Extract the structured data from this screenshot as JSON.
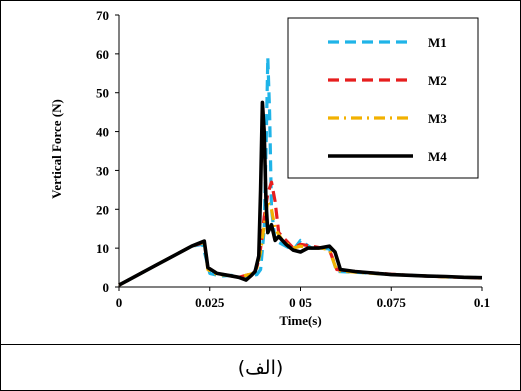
{
  "caption": "(الف)",
  "chart_data": {
    "type": "line",
    "xlabel": "Time(s)",
    "ylabel": "Vertical Force (N)",
    "xlim": [
      0,
      0.1
    ],
    "ylim": [
      0,
      70
    ],
    "xticks": [
      0,
      0.025,
      0.05,
      0.075,
      0.1
    ],
    "xtick_labels": [
      "0",
      "0.025",
      "0 05",
      "0.075",
      "0.1"
    ],
    "yticks": [
      0,
      10,
      20,
      30,
      40,
      50,
      60,
      70
    ],
    "ytick_labels": [
      "0",
      "10",
      "20",
      "30",
      "40",
      "50",
      "60",
      "70"
    ],
    "grid": false,
    "legend_position": "top-right",
    "series": [
      {
        "name": "M1",
        "color": "#1fb4e8",
        "dash": "dashed",
        "x": [
          0,
          0.005,
          0.01,
          0.015,
          0.02,
          0.023,
          0.025,
          0.028,
          0.031,
          0.034,
          0.036,
          0.038,
          0.039,
          0.04,
          0.0405,
          0.041,
          0.0415,
          0.042,
          0.043,
          0.045,
          0.048,
          0.05,
          0.053,
          0.056,
          0.058,
          0.06,
          0.065,
          0.07,
          0.075,
          0.08,
          0.085,
          0.09,
          0.095,
          0.1
        ],
        "y": [
          0.5,
          3,
          5.5,
          8,
          10.5,
          11,
          3.5,
          2.8,
          3,
          2.2,
          3,
          3.2,
          4.5,
          15,
          35,
          59,
          45,
          20,
          12,
          11,
          9.5,
          12,
          10,
          10,
          9.8,
          4,
          3.8,
          3.5,
          3.2,
          3,
          2.8,
          2.6,
          2.5,
          2.4
        ]
      },
      {
        "name": "M2",
        "color": "#e61e1e",
        "dash": "dashed",
        "x": [
          0,
          0.005,
          0.01,
          0.015,
          0.02,
          0.0235,
          0.0245,
          0.027,
          0.03,
          0.033,
          0.035,
          0.037,
          0.038,
          0.039,
          0.04,
          0.041,
          0.042,
          0.043,
          0.044,
          0.046,
          0.048,
          0.05,
          0.053,
          0.056,
          0.058,
          0.06,
          0.065,
          0.07,
          0.075,
          0.08,
          0.085,
          0.09,
          0.095,
          0.1
        ],
        "y": [
          0.5,
          3,
          5.5,
          8,
          10.5,
          11.5,
          5,
          3.5,
          3,
          2.5,
          3,
          3.5,
          5,
          10,
          18,
          24,
          27,
          22,
          14,
          12,
          10,
          11,
          10.5,
          10,
          9.5,
          4.5,
          4,
          3.6,
          3.3,
          3,
          2.8,
          2.6,
          2.5,
          2.3
        ]
      },
      {
        "name": "M3",
        "color": "#f2b100",
        "dash": "dashdot",
        "x": [
          0,
          0.005,
          0.01,
          0.015,
          0.02,
          0.0235,
          0.0245,
          0.027,
          0.03,
          0.033,
          0.035,
          0.037,
          0.038,
          0.039,
          0.04,
          0.041,
          0.042,
          0.043,
          0.045,
          0.048,
          0.05,
          0.053,
          0.056,
          0.058,
          0.06,
          0.065,
          0.07,
          0.075,
          0.08,
          0.085,
          0.09,
          0.095,
          0.1
        ],
        "y": [
          0.5,
          3,
          5.5,
          8,
          10.5,
          11.5,
          4.5,
          3.2,
          3,
          2.5,
          3,
          3.5,
          5,
          9,
          16,
          22,
          20,
          15,
          12,
          10,
          10.5,
          10,
          10,
          9.5,
          4.2,
          3.8,
          3.5,
          3.2,
          3,
          2.8,
          2.6,
          2.5,
          2.3
        ]
      },
      {
        "name": "M4",
        "color": "#000000",
        "dash": "solid",
        "x": [
          0,
          0.005,
          0.01,
          0.015,
          0.02,
          0.0235,
          0.0245,
          0.027,
          0.03,
          0.033,
          0.035,
          0.0365,
          0.0375,
          0.0385,
          0.039,
          0.0395,
          0.04,
          0.0405,
          0.041,
          0.042,
          0.043,
          0.044,
          0.046,
          0.048,
          0.05,
          0.052,
          0.055,
          0.058,
          0.0595,
          0.061,
          0.065,
          0.07,
          0.075,
          0.08,
          0.085,
          0.09,
          0.095,
          0.1
        ],
        "y": [
          0.5,
          3,
          5.5,
          8,
          10.5,
          11.8,
          5,
          3.5,
          3,
          2.5,
          1.8,
          3,
          4,
          8,
          25,
          47.5,
          40,
          22,
          14,
          16,
          12,
          13,
          11,
          9.5,
          9,
          10,
          10,
          10.5,
          9,
          4.5,
          4,
          3.6,
          3.2,
          3,
          2.8,
          2.7,
          2.5,
          2.4
        ]
      }
    ]
  }
}
